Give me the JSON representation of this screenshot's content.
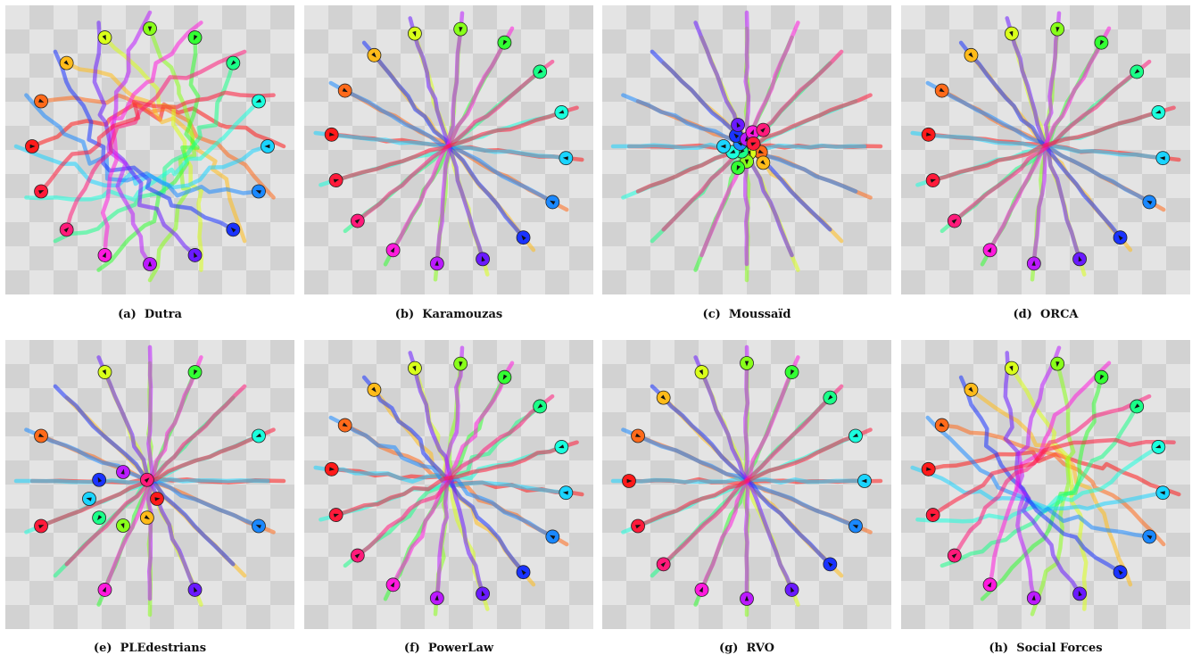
{
  "figure": {
    "panels": [
      {
        "id": "a",
        "label": "(a)",
        "name": "Dutra",
        "mode": "chaos"
      },
      {
        "id": "b",
        "label": "(b)",
        "name": "Karamouzas",
        "mode": "cross"
      },
      {
        "id": "c",
        "label": "(c)",
        "name": "Moussaïd",
        "mode": "jam"
      },
      {
        "id": "d",
        "label": "(d)",
        "name": "ORCA",
        "mode": "cross"
      },
      {
        "id": "e",
        "label": "(e)",
        "name": "PLEdestrians",
        "mode": "midjam"
      },
      {
        "id": "f",
        "label": "(f)",
        "name": "PowerLaw",
        "mode": "wiggle"
      },
      {
        "id": "g",
        "label": "(g)",
        "name": "RVO",
        "mode": "cross"
      },
      {
        "id": "h",
        "label": "(h)",
        "name": "Social Forces",
        "mode": "swirl"
      }
    ],
    "agent_colors": [
      "#ff1a1a",
      "#ff6a1a",
      "#ffbb1a",
      "#d9ff1a",
      "#88ff1a",
      "#33ff33",
      "#1aff88",
      "#1affdd",
      "#1ad4ff",
      "#1a88ff",
      "#1a33ff",
      "#6a1aff",
      "#bb1aff",
      "#ff1add",
      "#ff1a7a",
      "#ff1a3a"
    ],
    "background": {
      "light": "#e4e4e4",
      "dark": "#d2d2d2"
    }
  }
}
